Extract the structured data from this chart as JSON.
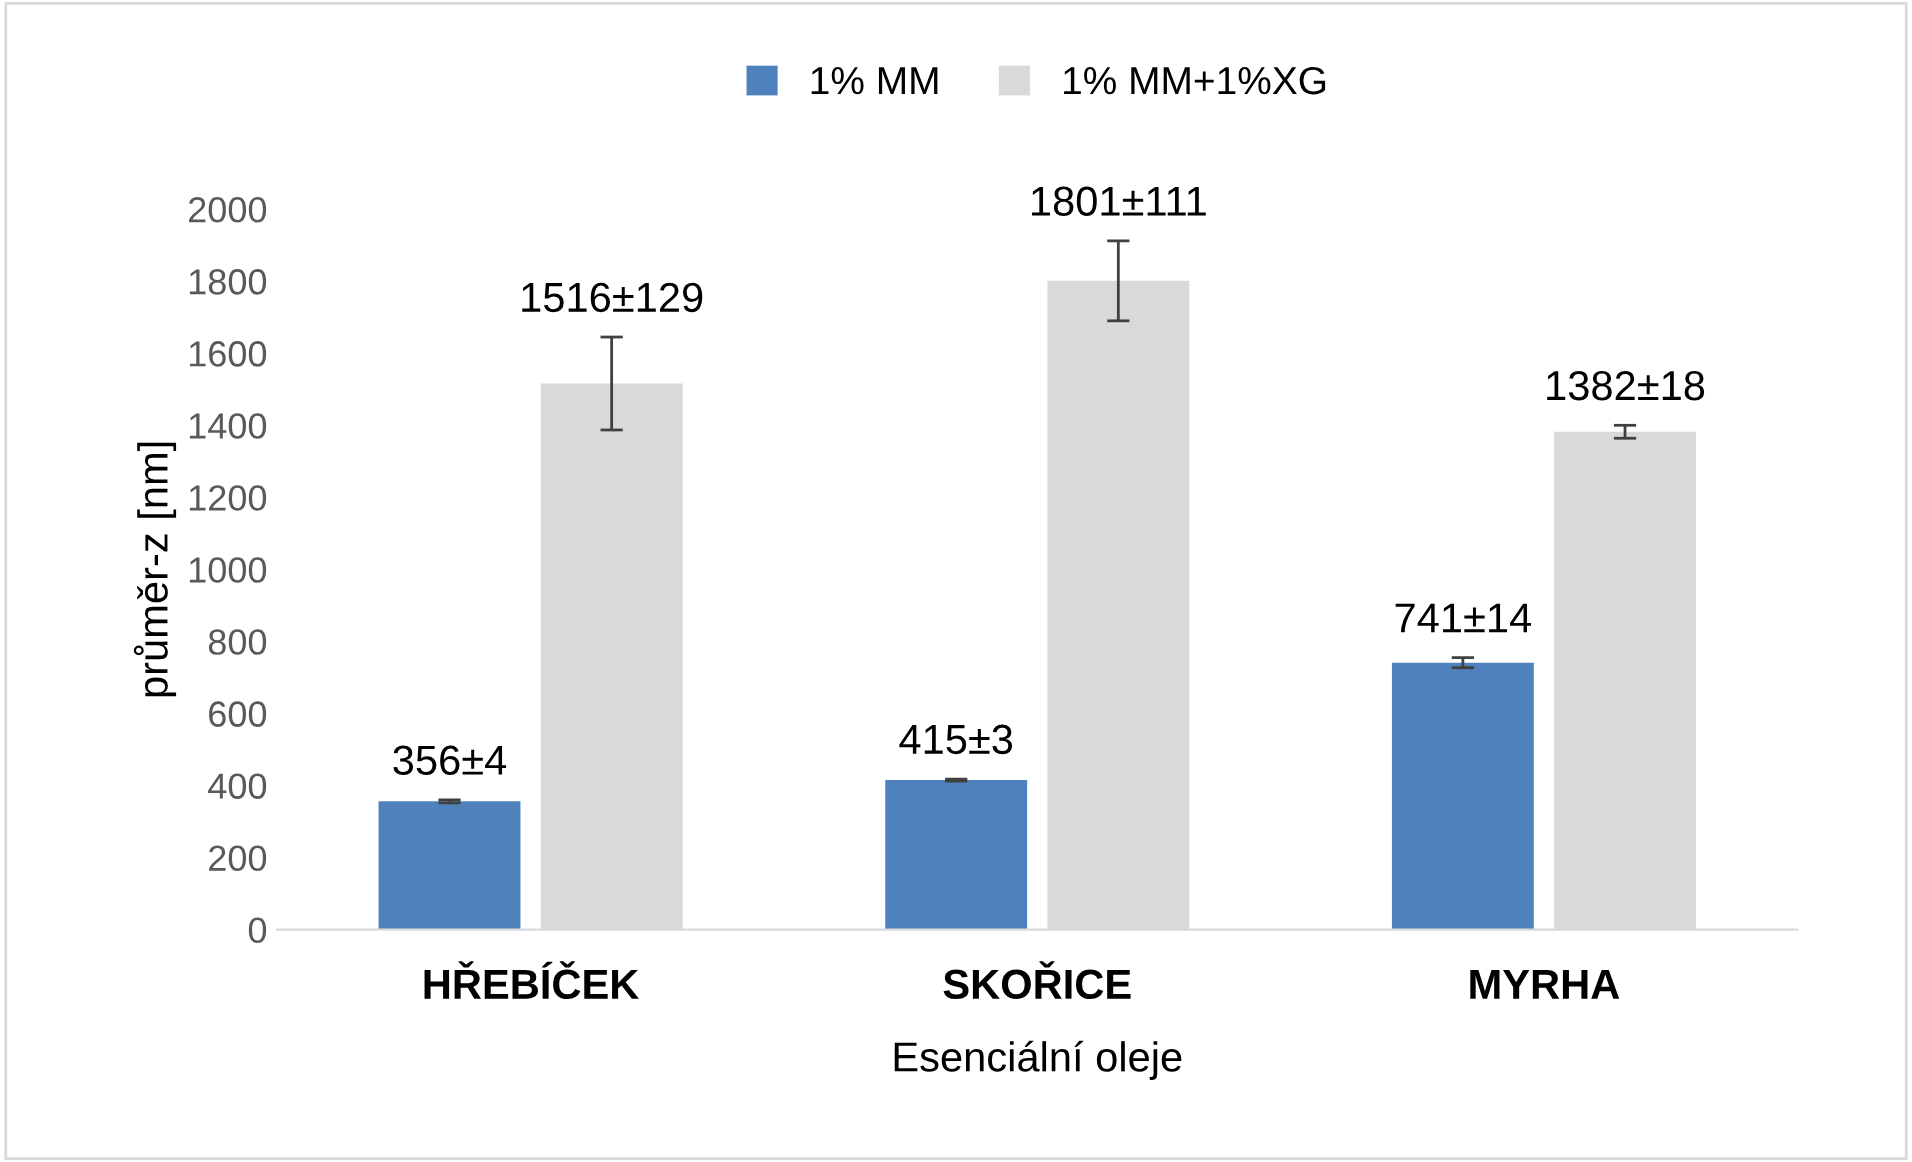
{
  "chart_data": {
    "type": "bar",
    "categories": [
      "HŘEBÍČEK",
      "SKOŘICE",
      "MYRHA"
    ],
    "xlabel": "Esenciální oleje",
    "ylabel": "průměr-z [nm]",
    "series": [
      {
        "name": "1% MM",
        "color": "#4f81bd",
        "values": [
          356,
          415,
          741
        ],
        "errors": [
          4,
          3,
          14
        ],
        "value_labels": [
          "356±4",
          "415±3",
          "741±14"
        ]
      },
      {
        "name": "1% MM+1%XG",
        "color": "#d9d9d9",
        "values": [
          1516,
          1801,
          1382
        ],
        "errors": [
          129,
          111,
          18
        ],
        "value_labels": [
          "1516±129",
          "1801±111",
          "1382±18"
        ]
      }
    ],
    "ylim": [
      0,
      2000
    ],
    "yticks": [
      0,
      200,
      400,
      600,
      800,
      1000,
      1200,
      1400,
      1600,
      1800,
      2000
    ],
    "grid": false,
    "legend": "top"
  }
}
